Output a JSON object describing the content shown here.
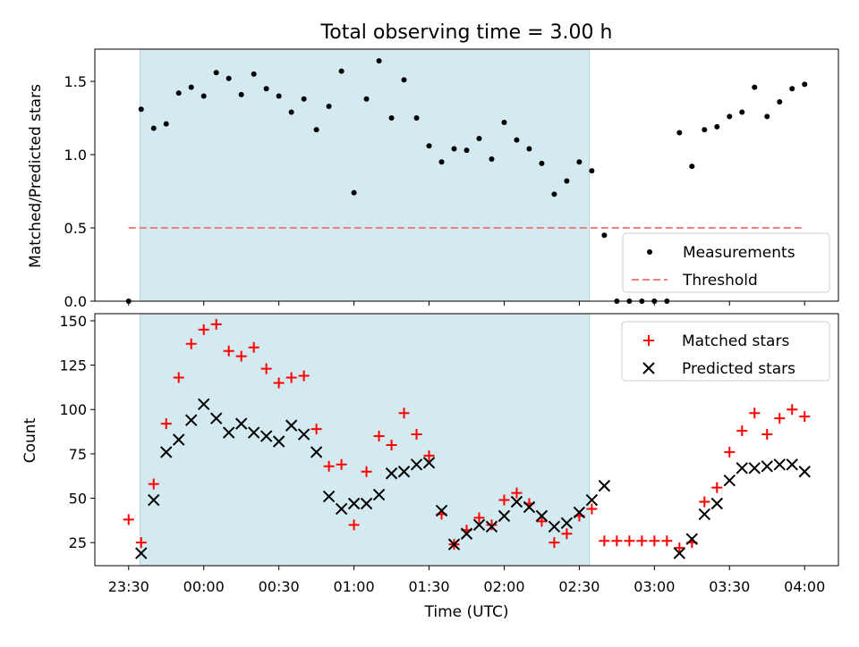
{
  "figure": {
    "title": "Total observing time = 3.00 h",
    "xlabel": "Time (UTC)",
    "x_tick_labels": [
      "23:30",
      "00:00",
      "00:30",
      "01:00",
      "01:30",
      "02:00",
      "02:30",
      "03:00",
      "03:30",
      "04:00"
    ],
    "x_tick_minutes": [
      0,
      30,
      60,
      90,
      120,
      150,
      180,
      210,
      240,
      270
    ],
    "xlim_minutes": [
      -13.5,
      283.5
    ],
    "shaded_interval_minutes": [
      4.5,
      184
    ],
    "shade_color": "#d3eaf0"
  },
  "chart_data": [
    {
      "type": "scatter",
      "ylabel": "Matched/Predicted stars",
      "ylim": [
        0,
        1.72
      ],
      "y_ticks": [
        0.0,
        0.5,
        1.0,
        1.5
      ],
      "y_tick_labels": [
        "0.0",
        "0.5",
        "1.0",
        "1.5"
      ],
      "legend_position": "bottom-right",
      "series": [
        {
          "name": "Measurements",
          "color": "#000000",
          "marker": "dot",
          "points": [
            [
              0,
              0.0
            ],
            [
              5,
              1.31
            ],
            [
              10,
              1.18
            ],
            [
              15,
              1.21
            ],
            [
              20,
              1.42
            ],
            [
              25,
              1.46
            ],
            [
              30,
              1.4
            ],
            [
              35,
              1.56
            ],
            [
              40,
              1.52
            ],
            [
              45,
              1.41
            ],
            [
              50,
              1.55
            ],
            [
              55,
              1.45
            ],
            [
              60,
              1.4
            ],
            [
              65,
              1.29
            ],
            [
              70,
              1.38
            ],
            [
              75,
              1.17
            ],
            [
              80,
              1.33
            ],
            [
              85,
              1.57
            ],
            [
              90,
              0.74
            ],
            [
              95,
              1.38
            ],
            [
              100,
              1.64
            ],
            [
              105,
              1.25
            ],
            [
              110,
              1.51
            ],
            [
              115,
              1.25
            ],
            [
              120,
              1.06
            ],
            [
              125,
              0.95
            ],
            [
              130,
              1.04
            ],
            [
              135,
              1.03
            ],
            [
              140,
              1.11
            ],
            [
              145,
              0.97
            ],
            [
              150,
              1.22
            ],
            [
              155,
              1.1
            ],
            [
              160,
              1.04
            ],
            [
              165,
              0.94
            ],
            [
              170,
              0.73
            ],
            [
              175,
              0.82
            ],
            [
              180,
              0.95
            ],
            [
              185,
              0.89
            ],
            [
              190,
              0.45
            ],
            [
              195,
              0.0
            ],
            [
              200,
              0.0
            ],
            [
              205,
              0.0
            ],
            [
              210,
              0.0
            ],
            [
              215,
              0.0
            ],
            [
              220,
              1.15
            ],
            [
              225,
              0.92
            ],
            [
              230,
              1.17
            ],
            [
              235,
              1.19
            ],
            [
              240,
              1.26
            ],
            [
              245,
              1.29
            ],
            [
              250,
              1.46
            ],
            [
              255,
              1.26
            ],
            [
              260,
              1.36
            ],
            [
              265,
              1.45
            ],
            [
              270,
              1.48
            ]
          ]
        },
        {
          "name": "Threshold",
          "color": "#f08080",
          "style": "dashed",
          "points": [
            [
              0,
              0.5
            ],
            [
              270,
              0.5
            ]
          ]
        }
      ]
    },
    {
      "type": "scatter",
      "ylabel": "Count",
      "ylim": [
        12,
        154
      ],
      "y_ticks": [
        25,
        50,
        75,
        100,
        125,
        150
      ],
      "y_tick_labels": [
        "25",
        "50",
        "75",
        "100",
        "125",
        "150"
      ],
      "legend_position": "top-right",
      "series": [
        {
          "name": "Matched stars",
          "color": "#ff0000",
          "marker": "plus",
          "points": [
            [
              0,
              38
            ],
            [
              5,
              25
            ],
            [
              10,
              58
            ],
            [
              15,
              92
            ],
            [
              20,
              118
            ],
            [
              25,
              137
            ],
            [
              30,
              145
            ],
            [
              35,
              148
            ],
            [
              40,
              133
            ],
            [
              45,
              130
            ],
            [
              50,
              135
            ],
            [
              55,
              123
            ],
            [
              60,
              115
            ],
            [
              65,
              118
            ],
            [
              70,
              119
            ],
            [
              75,
              89
            ],
            [
              80,
              68
            ],
            [
              85,
              69
            ],
            [
              90,
              35
            ],
            [
              95,
              65
            ],
            [
              100,
              85
            ],
            [
              105,
              80
            ],
            [
              110,
              98
            ],
            [
              115,
              86
            ],
            [
              120,
              74
            ],
            [
              125,
              41
            ],
            [
              130,
              24
            ],
            [
              135,
              32
            ],
            [
              140,
              39
            ],
            [
              145,
              35
            ],
            [
              150,
              49
            ],
            [
              155,
              53
            ],
            [
              160,
              47
            ],
            [
              165,
              37
            ],
            [
              170,
              25
            ],
            [
              175,
              30
            ],
            [
              180,
              40
            ],
            [
              185,
              44
            ],
            [
              190,
              26
            ],
            [
              195,
              26
            ],
            [
              200,
              26
            ],
            [
              205,
              26
            ],
            [
              210,
              26
            ],
            [
              215,
              26
            ],
            [
              220,
              22
            ],
            [
              225,
              25
            ],
            [
              230,
              48
            ],
            [
              235,
              56
            ],
            [
              240,
              76
            ],
            [
              245,
              88
            ],
            [
              250,
              98
            ],
            [
              255,
              86
            ],
            [
              260,
              95
            ],
            [
              265,
              100
            ],
            [
              270,
              96
            ]
          ]
        },
        {
          "name": "Predicted stars",
          "color": "#000000",
          "marker": "cross",
          "points": [
            [
              5,
              19
            ],
            [
              10,
              49
            ],
            [
              15,
              76
            ],
            [
              20,
              83
            ],
            [
              25,
              94
            ],
            [
              30,
              103
            ],
            [
              35,
              95
            ],
            [
              40,
              87
            ],
            [
              45,
              92
            ],
            [
              50,
              87
            ],
            [
              55,
              85
            ],
            [
              60,
              82
            ],
            [
              65,
              91
            ],
            [
              70,
              86
            ],
            [
              75,
              76
            ],
            [
              80,
              51
            ],
            [
              85,
              44
            ],
            [
              90,
              47
            ],
            [
              95,
              47
            ],
            [
              100,
              52
            ],
            [
              105,
              64
            ],
            [
              110,
              65
            ],
            [
              115,
              69
            ],
            [
              120,
              70
            ],
            [
              125,
              43
            ],
            [
              130,
              24
            ],
            [
              135,
              30
            ],
            [
              140,
              35
            ],
            [
              145,
              34
            ],
            [
              150,
              40
            ],
            [
              155,
              48
            ],
            [
              160,
              45
            ],
            [
              165,
              40
            ],
            [
              170,
              34
            ],
            [
              175,
              36
            ],
            [
              180,
              42
            ],
            [
              185,
              49
            ],
            [
              190,
              57
            ],
            [
              220,
              19
            ],
            [
              225,
              27
            ],
            [
              230,
              41
            ],
            [
              235,
              47
            ],
            [
              240,
              60
            ],
            [
              245,
              67
            ],
            [
              250,
              67
            ],
            [
              255,
              68
            ],
            [
              260,
              69
            ],
            [
              265,
              69
            ],
            [
              270,
              65
            ]
          ]
        }
      ]
    }
  ]
}
